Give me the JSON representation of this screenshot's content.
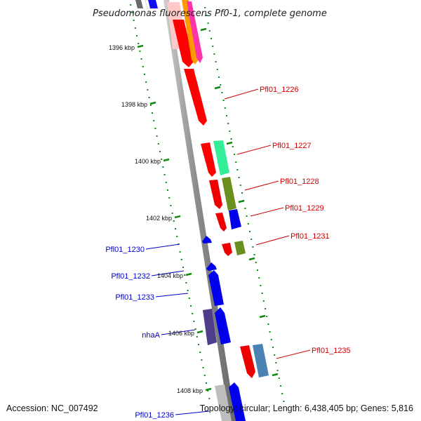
{
  "title": "Pseudomonas fluorescens Pf0-1, complete genome",
  "footer": {
    "accession": "Accession: NC_007492",
    "topology": "Topology: circular; Length: 6,438,405 bp; Genes: 5,816"
  },
  "colors": {
    "forward_label": "#cc0000",
    "reverse_label": "#0000cc",
    "tick": "#118811",
    "backbone": "#888888"
  },
  "ticks": [
    "1396 kbp",
    "1398 kbp",
    "1400 kbp",
    "1402 kbp",
    "1404 kbp",
    "1406 kbp",
    "1408 kbp"
  ],
  "forward_labels": [
    "Pfl01_1226",
    "Pfl01_1227",
    "Pfl01_1228",
    "Pfl01_1229",
    "Pfl01_1231",
    "Pfl01_1235"
  ],
  "reverse_labels": [
    "Pfl01_1230",
    "Pfl01_1232",
    "Pfl01_1233",
    "nhaA",
    "Pfl01_1236"
  ]
}
